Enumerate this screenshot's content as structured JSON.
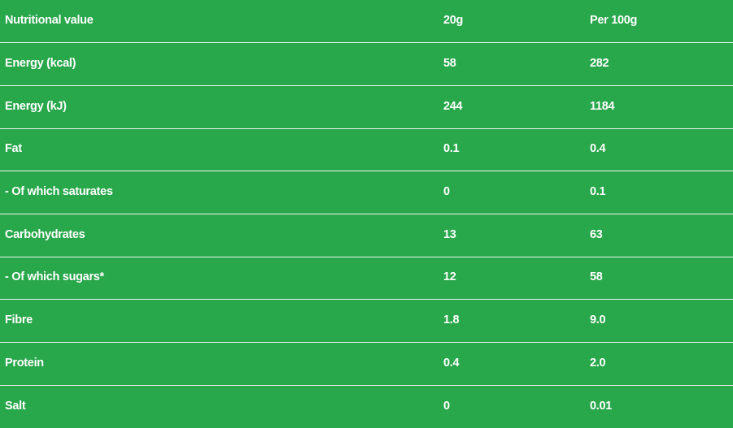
{
  "header": [
    "Nutritional value",
    "20g",
    "Per 100g"
  ],
  "rows": [
    [
      "Energy (kcal)",
      "58",
      "282"
    ],
    [
      "Energy (kJ)",
      "244",
      "1184"
    ],
    [
      "Fat",
      "0.1",
      "0.4"
    ],
    [
      "- Of which saturates",
      "0",
      "0.1"
    ],
    [
      "Carbohydrates",
      "13",
      "63"
    ],
    [
      "- Of which sugars*",
      "12",
      "58"
    ],
    [
      "Fibre",
      "1.8",
      "9.0"
    ],
    [
      "Protein",
      "0.4",
      "2.0"
    ],
    [
      "Salt",
      "0",
      "0.01"
    ]
  ],
  "colors": {
    "background": "#28a74b",
    "text": "#ffffff",
    "divider": "#f2f7f3"
  }
}
